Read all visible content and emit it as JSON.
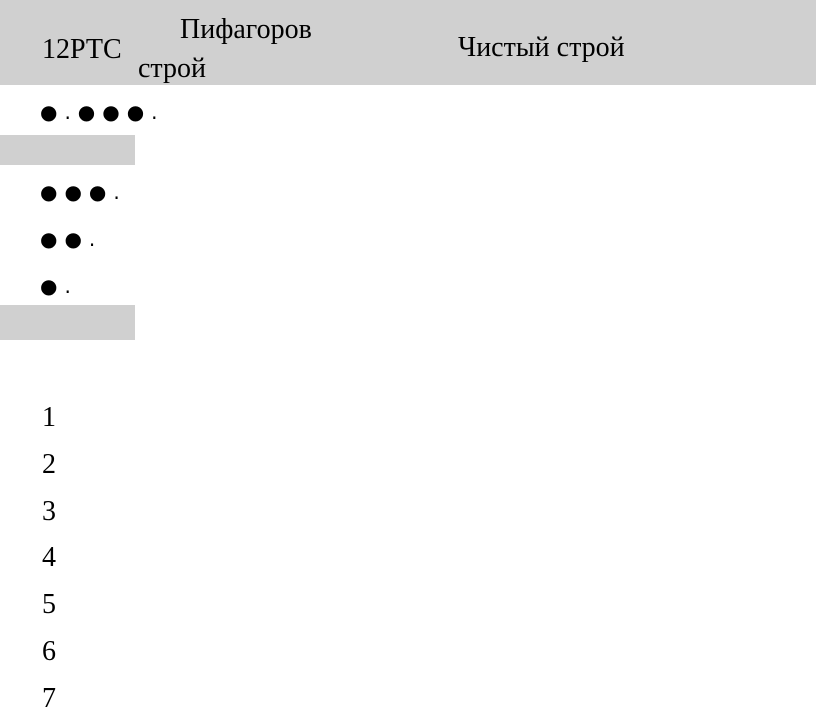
{
  "header": {
    "col1": "12РТС",
    "col2_line1": "Пифагоров",
    "col2_line2": "строй",
    "col3": "Чистый строй"
  },
  "patterns": [
    "●.●●●.",
    "●●●.",
    "●●.",
    "●."
  ],
  "numbers": [
    1,
    2,
    3,
    4,
    5,
    6,
    7
  ]
}
